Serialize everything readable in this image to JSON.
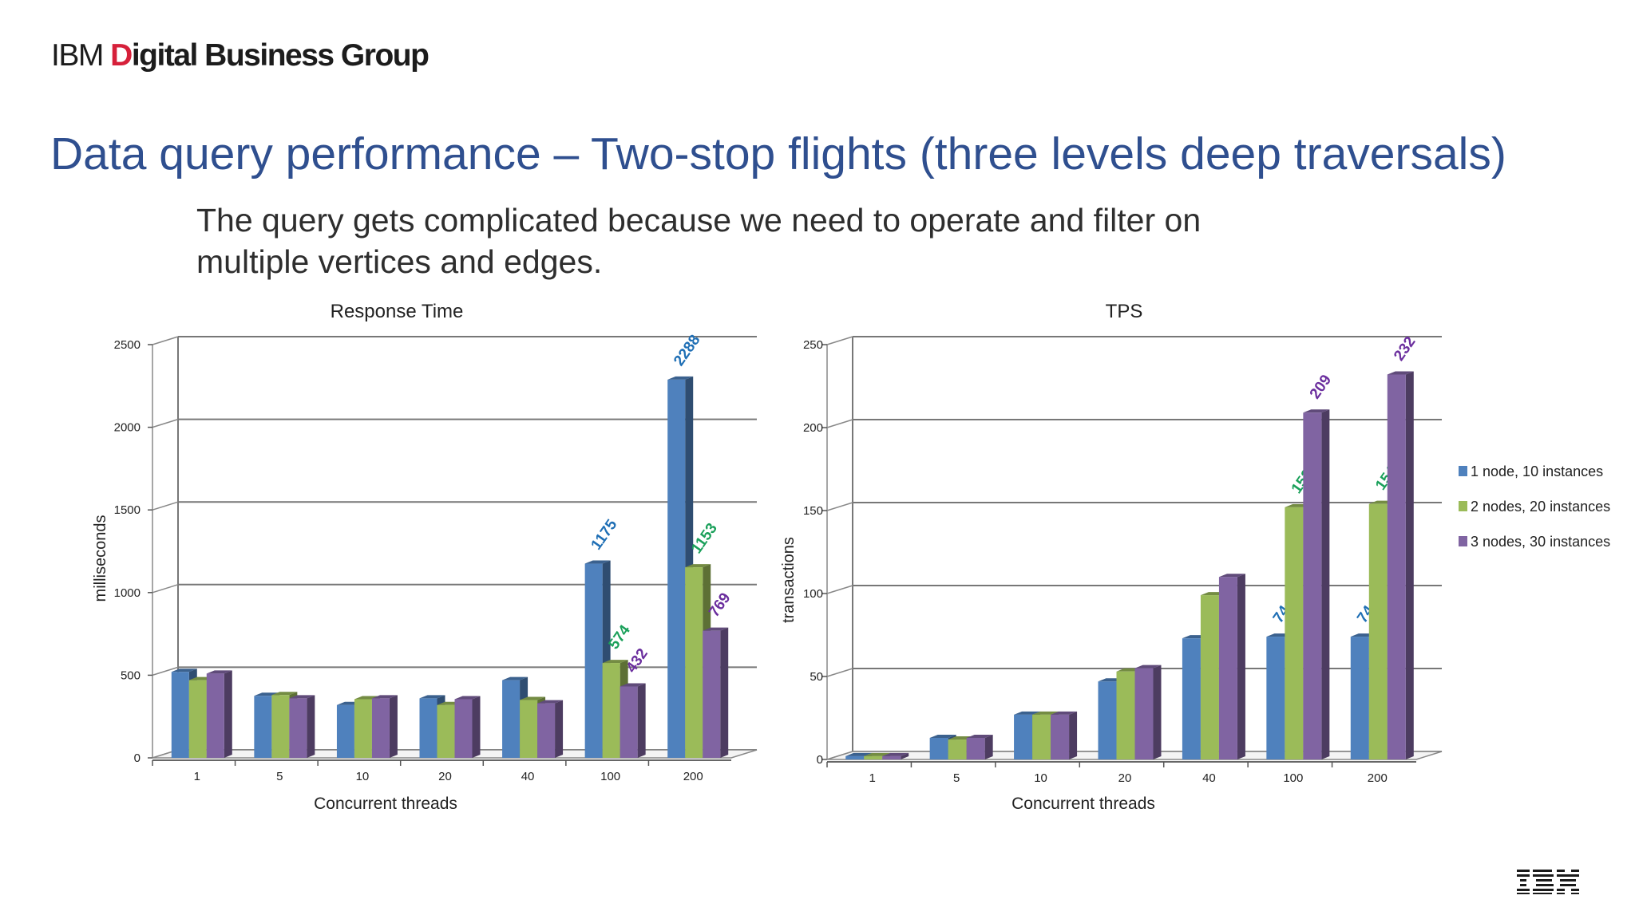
{
  "header": {
    "brand_prefix": "IBM ",
    "brand_d": "D",
    "brand_rest": "igital Business Group",
    "title": "Data query performance – Two-stop flights (three levels deep traversals)",
    "subtitle": "The query gets complicated because we need to operate and filter on multiple vertices and edges."
  },
  "colors": {
    "series": [
      "#4f81bd",
      "#9bbb59",
      "#8064a2"
    ],
    "label_colors": [
      "#1f6fb5",
      "#1aa05a",
      "#6b2f9e"
    ],
    "title": "#2f4f8f"
  },
  "logo": {
    "icon": "ibm-logo",
    "text": "IBM"
  },
  "chart_data": [
    {
      "type": "bar",
      "title": "Response Time",
      "xlabel": "Concurrent threads",
      "ylabel": "milliseconds",
      "ylim": [
        0,
        2500
      ],
      "yticks": [
        0,
        500,
        1000,
        1500,
        2000,
        2500
      ],
      "categories": [
        "1",
        "5",
        "10",
        "20",
        "40",
        "100",
        "200"
      ],
      "grid": true,
      "series": [
        {
          "name": "1 node, 10 instances",
          "values": [
            520,
            375,
            320,
            360,
            470,
            1175,
            2288
          ]
        },
        {
          "name": "2 nodes, 20 instances",
          "values": [
            470,
            380,
            355,
            320,
            350,
            574,
            1153
          ]
        },
        {
          "name": "3 nodes, 30 instances",
          "values": [
            510,
            360,
            360,
            355,
            330,
            432,
            769
          ]
        }
      ],
      "data_labels": [
        {
          "series": 0,
          "category": "100",
          "text": "1175"
        },
        {
          "series": 1,
          "category": "100",
          "text": "574"
        },
        {
          "series": 2,
          "category": "100",
          "text": "432"
        },
        {
          "series": 0,
          "category": "200",
          "text": "2288"
        },
        {
          "series": 1,
          "category": "200",
          "text": "1153"
        },
        {
          "series": 2,
          "category": "200",
          "text": "769"
        }
      ]
    },
    {
      "type": "bar",
      "title": "TPS",
      "xlabel": "Concurrent threads",
      "ylabel": "transactions",
      "ylim": [
        0,
        250
      ],
      "yticks": [
        0,
        50,
        100,
        150,
        200,
        250
      ],
      "categories": [
        "1",
        "5",
        "10",
        "20",
        "40",
        "100",
        "200"
      ],
      "grid": true,
      "legend": "right",
      "series": [
        {
          "name": "1 node, 10 instances",
          "values": [
            2,
            13,
            27,
            47,
            73,
            74,
            74
          ]
        },
        {
          "name": "2 nodes, 20 instances",
          "values": [
            2,
            12,
            27,
            53,
            99,
            152,
            154
          ]
        },
        {
          "name": "3 nodes, 30 instances",
          "values": [
            2,
            13,
            27,
            55,
            110,
            209,
            232
          ]
        }
      ],
      "data_labels": [
        {
          "series": 0,
          "category": "100",
          "text": "74"
        },
        {
          "series": 1,
          "category": "100",
          "text": "152"
        },
        {
          "series": 2,
          "category": "100",
          "text": "209"
        },
        {
          "series": 0,
          "category": "200",
          "text": "74"
        },
        {
          "series": 1,
          "category": "200",
          "text": "154"
        },
        {
          "series": 2,
          "category": "200",
          "text": "232"
        }
      ]
    }
  ]
}
